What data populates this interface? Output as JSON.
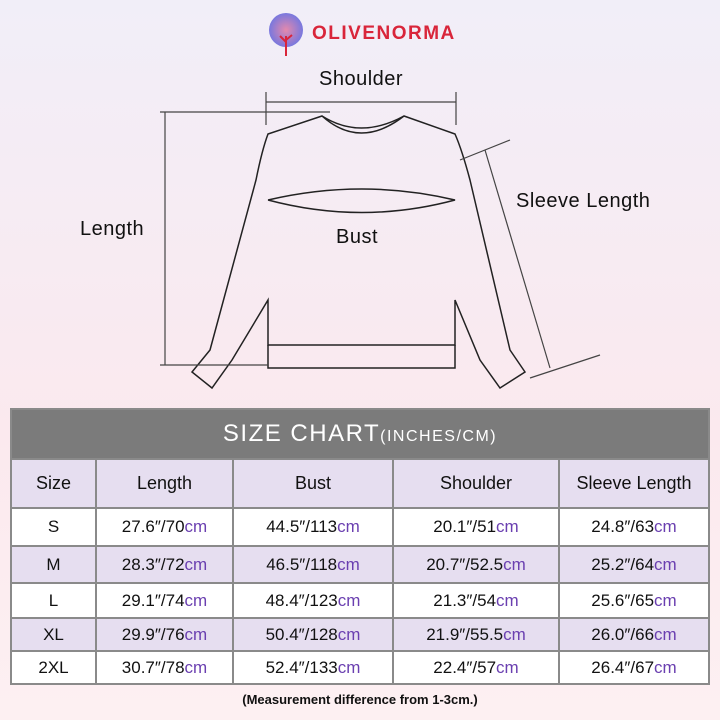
{
  "brand": {
    "name": "OLIVENORMA",
    "color": "#d9253a"
  },
  "diagram": {
    "shoulder": "Shoulder",
    "length": "Length",
    "bust": "Bust",
    "sleeve": "Sleeve Length"
  },
  "table": {
    "title": "SIZE CHART",
    "units": "(INCHES/CM)",
    "headers": [
      "Size",
      "Length",
      "Bust",
      "Shoulder",
      "Sleeve Length"
    ],
    "unit_suffix": "cm",
    "rows": [
      {
        "size": "S",
        "vals": [
          "27.6″/70",
          "44.5″/113",
          "20.1″/51",
          "24.8″/63"
        ]
      },
      {
        "size": "M",
        "vals": [
          "28.3″/72",
          "46.5″/118",
          "20.7″/52.5",
          "25.2″/64"
        ]
      },
      {
        "size": "L",
        "vals": [
          "29.1″/74",
          "48.4″/123",
          "21.3″/54",
          "25.6″/65"
        ]
      },
      {
        "size": "XL",
        "vals": [
          "29.9″/76",
          "50.4″/128",
          "21.9″/55.5",
          "26.0″/66"
        ]
      },
      {
        "size": "2XL",
        "vals": [
          "30.7″/78",
          "52.4″/133",
          "22.4″/57",
          "26.4″/67"
        ]
      }
    ]
  },
  "note": "(Measurement difference from 1-3cm.)",
  "colors": {
    "title_bg": "#7b7b7b",
    "row_alt": "#e6def0",
    "cm": "#6a3fb0"
  }
}
